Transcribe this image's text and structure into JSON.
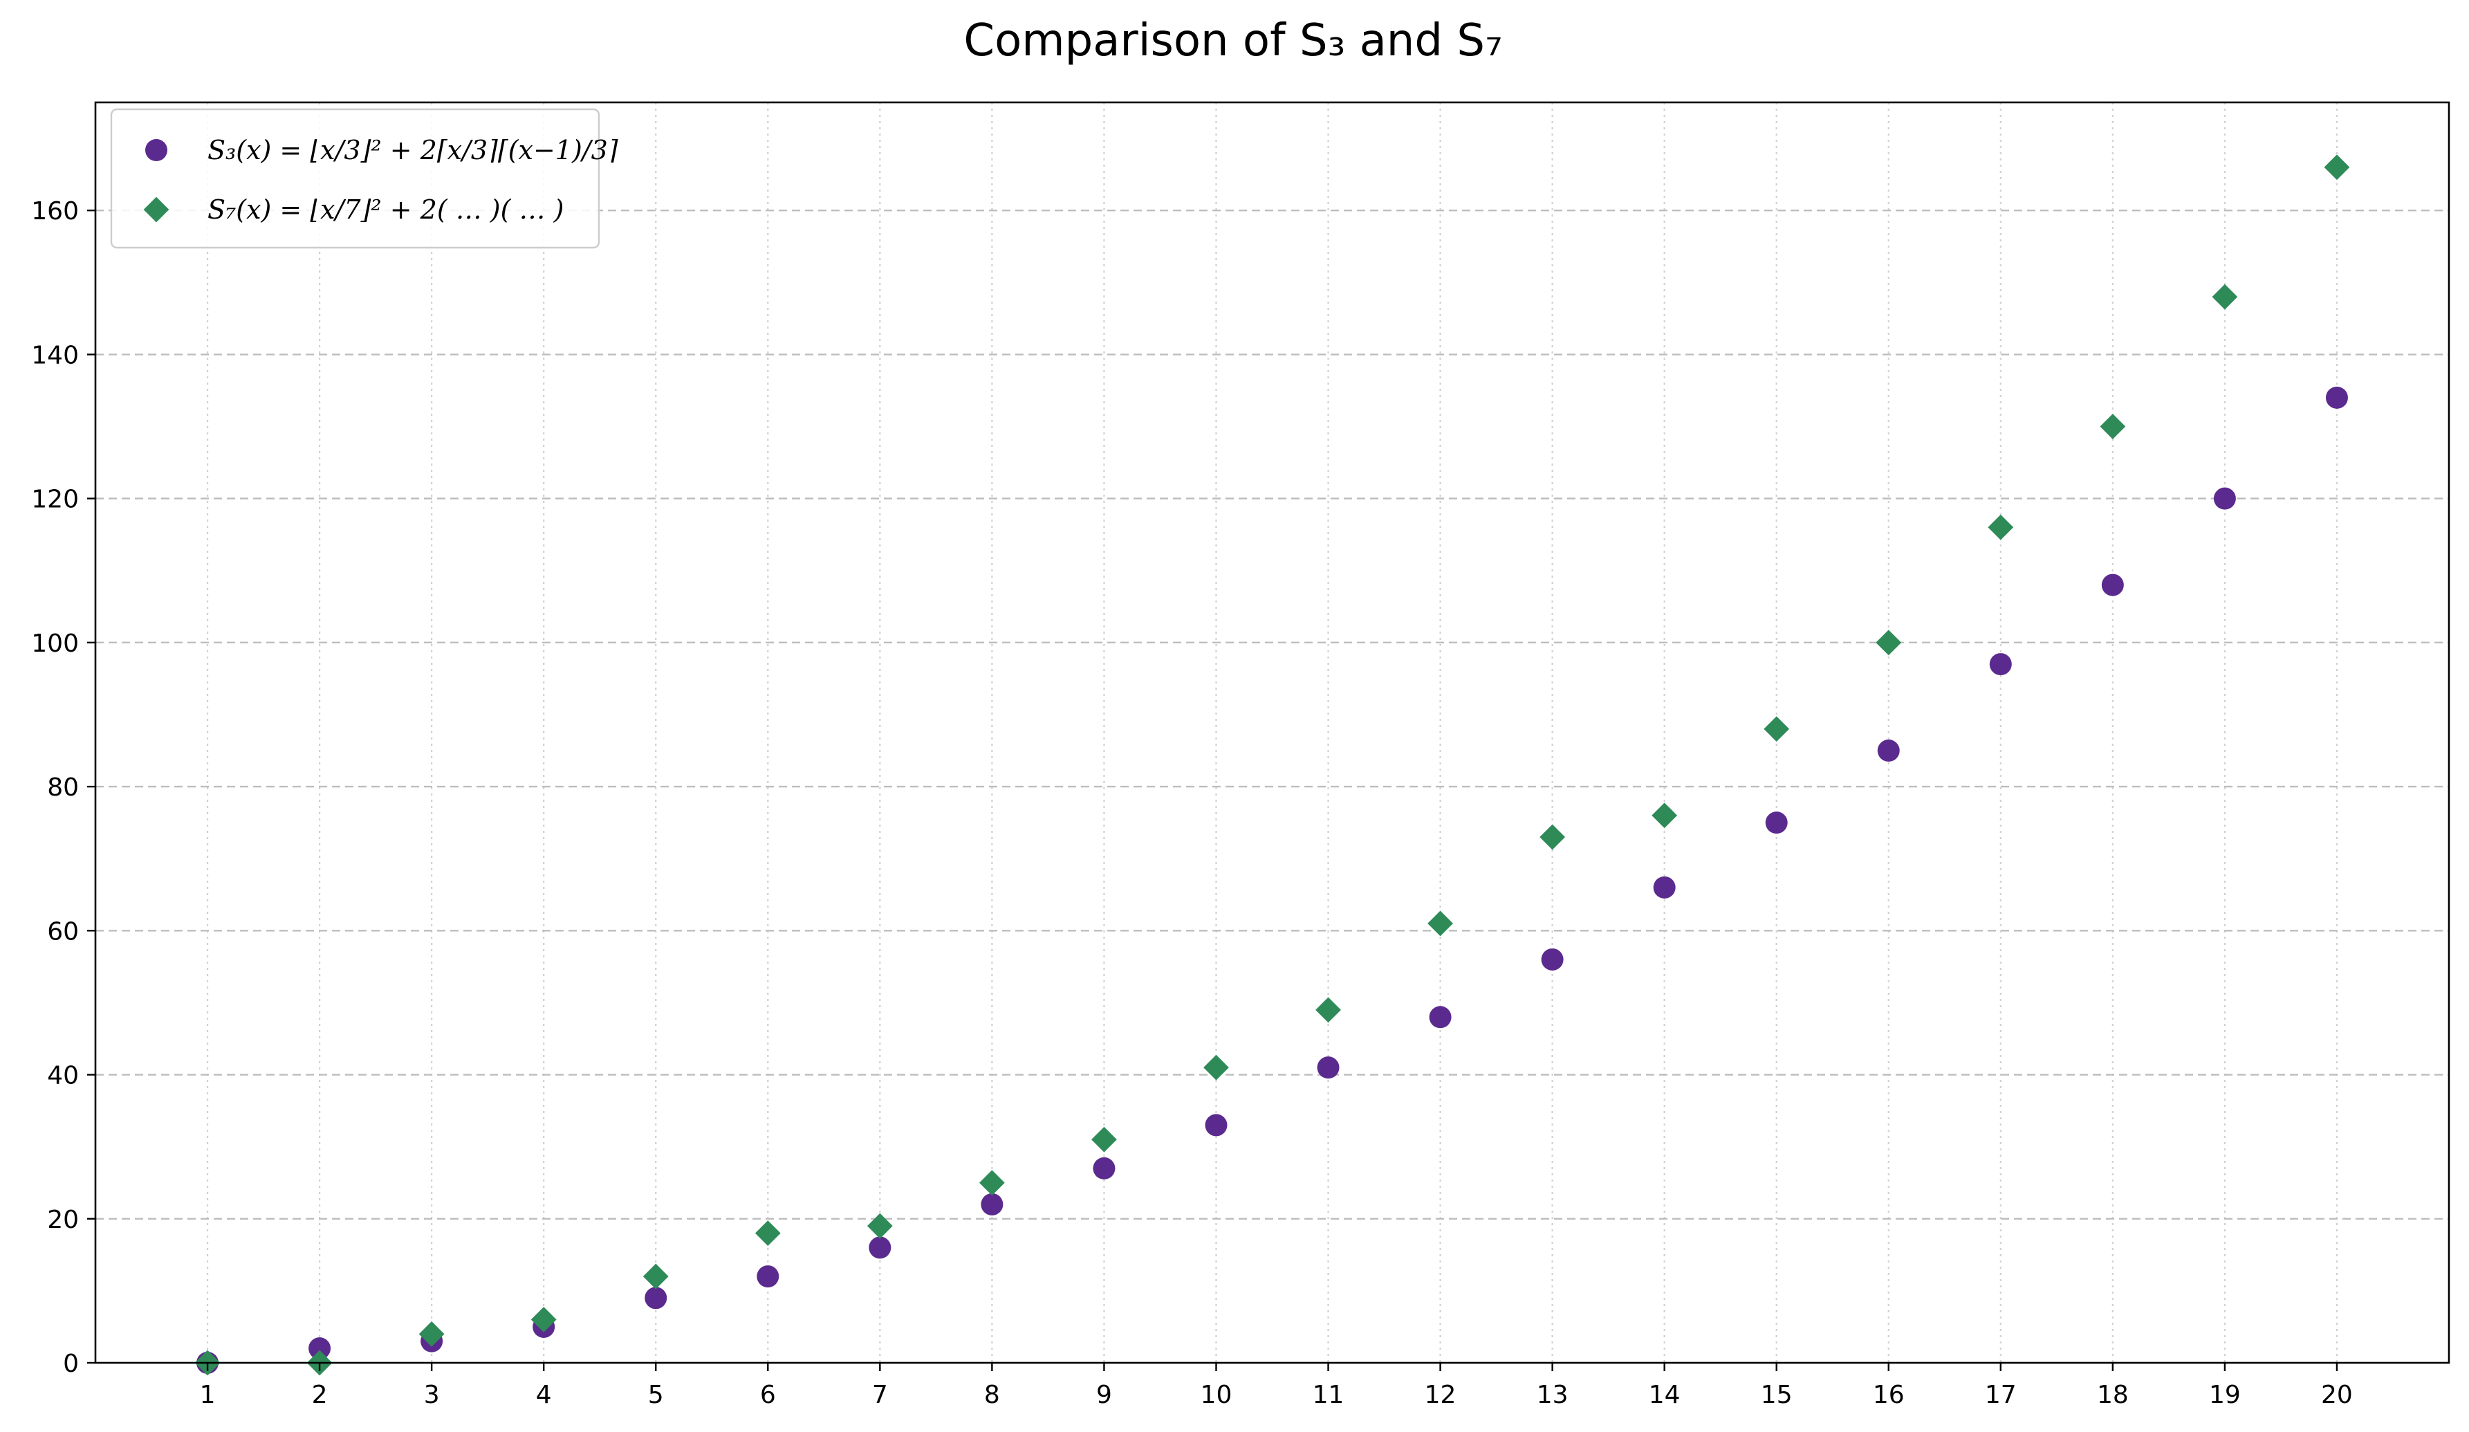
{
  "chart_data": {
    "type": "scatter",
    "title": "Comparison of S₃ and S₇",
    "xlabel": "",
    "ylabel": "",
    "x": [
      1,
      2,
      3,
      4,
      5,
      6,
      7,
      8,
      9,
      10,
      11,
      12,
      13,
      14,
      15,
      16,
      17,
      18,
      19,
      20
    ],
    "xticks": [
      "1",
      "2",
      "3",
      "4",
      "5",
      "6",
      "7",
      "8",
      "9",
      "10",
      "11",
      "12",
      "13",
      "14",
      "15",
      "16",
      "17",
      "18",
      "19",
      "20"
    ],
    "xlim": [
      0,
      21
    ],
    "ylim": [
      0,
      175
    ],
    "yticks": [
      "0",
      "20",
      "40",
      "60",
      "80",
      "100",
      "120",
      "140",
      "160"
    ],
    "grid": true,
    "legend_position": "top-left",
    "series": [
      {
        "name": "S₃(x) = ⌊x/3⌋² + 2⌈x/3⌉⌈(x−1)/3⌉",
        "marker": "circle",
        "color": "#5b2a8e",
        "values": [
          0,
          2,
          3,
          5,
          9,
          12,
          16,
          22,
          27,
          33,
          41,
          48,
          56,
          66,
          75,
          85,
          97,
          108,
          120,
          134
        ]
      },
      {
        "name": "S₇(x) = ⌊x/7⌋² + 2( … )( … )",
        "marker": "diamond",
        "color": "#2e8b57",
        "values": [
          0,
          0,
          4,
          6,
          12,
          18,
          19,
          25,
          31,
          41,
          49,
          61,
          73,
          76,
          88,
          100,
          116,
          130,
          148,
          166
        ]
      }
    ]
  }
}
